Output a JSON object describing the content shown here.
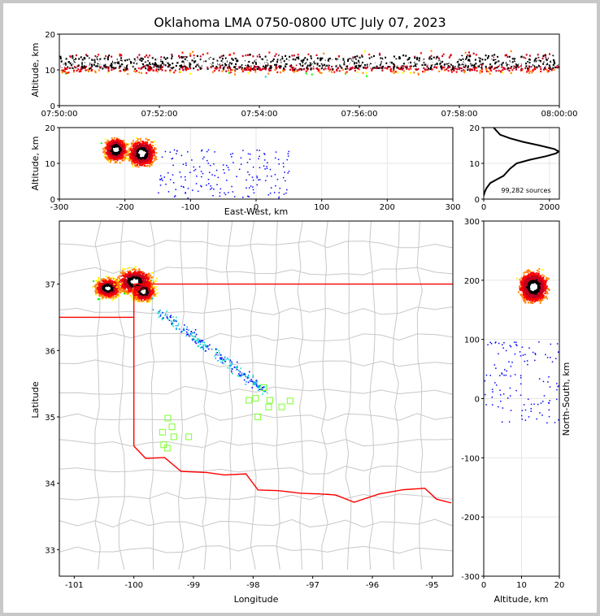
{
  "title": "Oklahoma LMA 0750-0800 UTC July 07, 2023",
  "colors": {
    "density": [
      "#0000ff",
      "#00a0ff",
      "#00e0c0",
      "#00ff00",
      "#ffff00",
      "#ff8000",
      "#ff0000",
      "#c00020",
      "#000000",
      "#ffffff"
    ],
    "state_border": "#ff0000",
    "county_line": "#c8c8c8",
    "station": "#7cff30"
  },
  "chart_data": [
    {
      "panel": "time-altitude",
      "type": "heatmap",
      "xlabel": "",
      "ylabel": "Altitude, km",
      "xticks": [
        "07:50:00",
        "07:52:00",
        "07:54:00",
        "07:56:00",
        "07:58:00",
        "08:00:00"
      ],
      "yticks": [
        "0",
        "10",
        "20"
      ],
      "ylim": [
        0,
        20
      ]
    },
    {
      "panel": "east-west-altitude",
      "type": "heatmap",
      "xlabel": "East-West, km",
      "ylabel": "Altitude, km",
      "xticks": [
        "-300",
        "-200",
        "-100",
        "0",
        "100",
        "200",
        "300"
      ],
      "yticks": [
        "0",
        "10",
        "20"
      ],
      "xlim": [
        -300,
        300
      ],
      "ylim": [
        0,
        20
      ],
      "grid": true
    },
    {
      "panel": "altitude-histogram",
      "type": "line",
      "xticks": [
        "0",
        "2000"
      ],
      "yticks": [
        "0",
        "10",
        "20"
      ],
      "xlim": [
        0,
        2300
      ],
      "ylim": [
        0,
        20
      ],
      "annotation": "99,282 sources",
      "x": [
        0,
        30,
        80,
        200,
        400,
        600,
        700,
        800,
        1000,
        1400,
        1900,
        2200,
        2280,
        2150,
        1700,
        1200,
        800,
        500,
        400,
        350,
        300
      ],
      "y": [
        1,
        2,
        3,
        4.5,
        5.5,
        6.5,
        7.5,
        8.5,
        10,
        11,
        12,
        12.8,
        13.3,
        14,
        15,
        16,
        17,
        18,
        19,
        19.5,
        20
      ]
    },
    {
      "panel": "plan-view",
      "type": "heatmap",
      "xlabel": "Longitude",
      "ylabel": "Latitude",
      "xticks": [
        "-101",
        "-100",
        "-99",
        "-98",
        "-97",
        "-96",
        "-95"
      ],
      "yticks": [
        "33",
        "34",
        "35",
        "36",
        "37"
      ],
      "xlim": [
        -101.25,
        -94.65
      ],
      "ylim": [
        32.6,
        37.95
      ]
    },
    {
      "panel": "altitude-north-south",
      "type": "heatmap",
      "xlabel": "Altitude, km",
      "ylabel": "North-South, km",
      "xticks": [
        "0",
        "10",
        "20"
      ],
      "yticks": [
        "-300",
        "-200",
        "-100",
        "0",
        "100",
        "200",
        "300"
      ],
      "xlim": [
        0,
        20
      ],
      "ylim": [
        -300,
        300
      ],
      "grid": true
    }
  ],
  "stations": [
    [
      -99.43,
      34.98
    ],
    [
      -99.36,
      34.85
    ],
    [
      -99.52,
      34.77
    ],
    [
      -99.33,
      34.7
    ],
    [
      -99.08,
      34.7
    ],
    [
      -99.5,
      34.58
    ],
    [
      -99.44,
      34.53
    ],
    [
      -97.82,
      35.44
    ],
    [
      -98.07,
      35.25
    ],
    [
      -97.96,
      35.28
    ],
    [
      -97.72,
      35.25
    ],
    [
      -97.38,
      35.24
    ],
    [
      -97.74,
      35.15
    ],
    [
      -97.52,
      35.15
    ],
    [
      -97.92,
      35.0
    ]
  ]
}
